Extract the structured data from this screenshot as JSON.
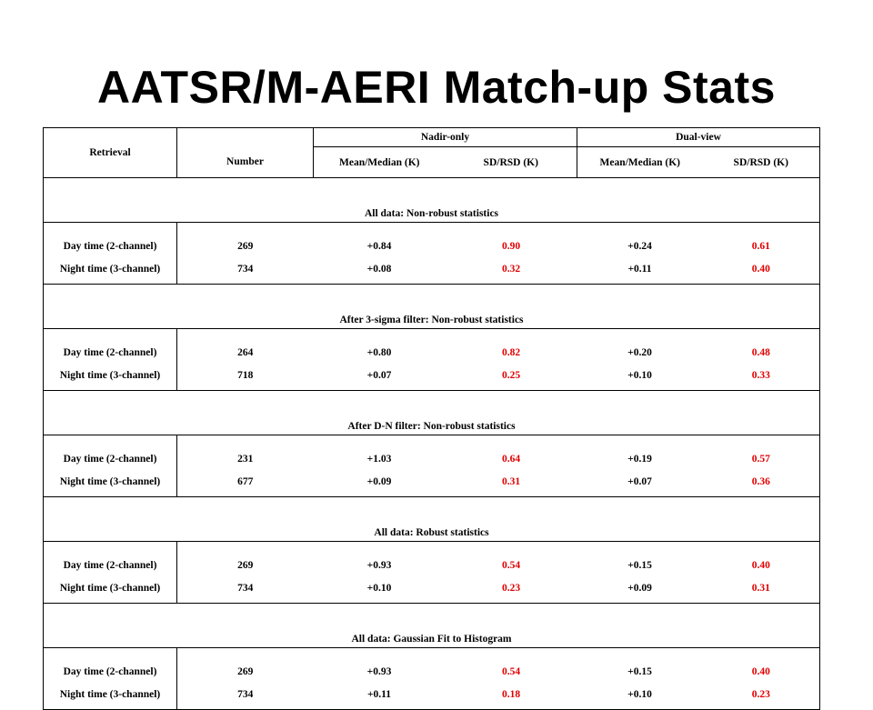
{
  "title": "AATSR/M-AERI Match-up Stats",
  "header": {
    "retrieval": "Retrieval",
    "nadir_only": "Nadir-only",
    "dual_view": "Dual-view",
    "number": "Number",
    "mean_median": "Mean/Median (K)",
    "sd_rsd": "SD/RSD (K)"
  },
  "sections": [
    {
      "title": "All data: Non-robust statistics",
      "rows": [
        {
          "label": "Day time (2-channel)",
          "number": "269",
          "nadir_mean": "+0.84",
          "nadir_sd": "0.90",
          "dual_mean": "+0.24",
          "dual_sd": "0.61"
        },
        {
          "label": "Night time (3-channel)",
          "number": "734",
          "nadir_mean": "+0.08",
          "nadir_sd": "0.32",
          "dual_mean": "+0.11",
          "dual_sd": "0.40"
        }
      ]
    },
    {
      "title": "After 3-sigma filter: Non-robust statistics",
      "rows": [
        {
          "label": "Day time (2-channel)",
          "number": "264",
          "nadir_mean": "+0.80",
          "nadir_sd": "0.82",
          "dual_mean": "+0.20",
          "dual_sd": "0.48"
        },
        {
          "label": "Night time (3-channel)",
          "number": "718",
          "nadir_mean": "+0.07",
          "nadir_sd": "0.25",
          "dual_mean": "+0.10",
          "dual_sd": "0.33"
        }
      ]
    },
    {
      "title": "After D-N filter: Non-robust statistics",
      "rows": [
        {
          "label": "Day time (2-channel)",
          "number": "231",
          "nadir_mean": "+1.03",
          "nadir_sd": "0.64",
          "dual_mean": "+0.19",
          "dual_sd": "0.57"
        },
        {
          "label": "Night time (3-channel)",
          "number": "677",
          "nadir_mean": "+0.09",
          "nadir_sd": "0.31",
          "dual_mean": "+0.07",
          "dual_sd": "0.36"
        }
      ]
    },
    {
      "title": "All data: Robust statistics",
      "rows": [
        {
          "label": "Day time (2-channel)",
          "number": "269",
          "nadir_mean": "+0.93",
          "nadir_sd": "0.54",
          "dual_mean": "+0.15",
          "dual_sd": "0.40"
        },
        {
          "label": "Night time (3-channel)",
          "number": "734",
          "nadir_mean": "+0.10",
          "nadir_sd": "0.23",
          "dual_mean": "+0.09",
          "dual_sd": "0.31"
        }
      ]
    },
    {
      "title": "All data: Gaussian Fit to Histogram",
      "rows": [
        {
          "label": "Day time (2-channel)",
          "number": "269",
          "nadir_mean": "+0.93",
          "nadir_sd": "0.54",
          "dual_mean": "+0.15",
          "dual_sd": "0.40"
        },
        {
          "label": "Night time (3-channel)",
          "number": "734",
          "nadir_mean": "+0.11",
          "nadir_sd": "0.18",
          "dual_mean": "+0.10",
          "dual_sd": "0.23"
        }
      ]
    }
  ],
  "colors": {
    "text": "#000000",
    "sd_highlight": "#e00000"
  }
}
